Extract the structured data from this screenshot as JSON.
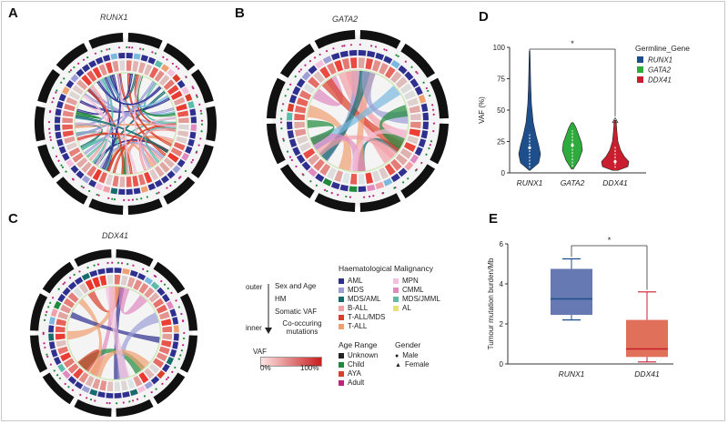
{
  "panels": {
    "A": {
      "label": "A",
      "title": "RUNX1"
    },
    "B": {
      "label": "B",
      "title": "GATA2"
    },
    "C": {
      "label": "C",
      "title": "DDX41"
    },
    "D": {
      "label": "D"
    },
    "E": {
      "label": "E"
    }
  },
  "ring_legend": {
    "outer": "outer",
    "inner": "inner",
    "items": [
      "Sex and Age",
      "HM",
      "Somatic VAF",
      "Co-occuring mutations"
    ],
    "vaf_title": "VAF",
    "vaf_min": "0%",
    "vaf_max": "100%"
  },
  "malignancy_legend": {
    "title": "Haematological Malignancy",
    "items": [
      {
        "label": "AML",
        "color": "#2e2f8f"
      },
      {
        "label": "MDS",
        "color": "#9d9ed6"
      },
      {
        "label": "MDS/AML",
        "color": "#166b6b"
      },
      {
        "label": "B-ALL",
        "color": "#f2a0a8"
      },
      {
        "label": "T-ALL/MDS",
        "color": "#d8402b"
      },
      {
        "label": "T-ALL",
        "color": "#f0a070"
      },
      {
        "label": "MPN",
        "color": "#f4c0dc"
      },
      {
        "label": "CMML",
        "color": "#e08ac0"
      },
      {
        "label": "MDS/JMML",
        "color": "#5cbcaa"
      },
      {
        "label": "AL",
        "color": "#e8e07a"
      }
    ]
  },
  "age_legend": {
    "title": "Age Range",
    "items": [
      {
        "label": "Unknown",
        "color": "#222222"
      },
      {
        "label": "Child",
        "color": "#1f8a3c"
      },
      {
        "label": "AYA",
        "color": "#d8402b"
      },
      {
        "label": "Adult",
        "color": "#c0237e"
      }
    ]
  },
  "gender_legend": {
    "title": "Gender",
    "items": [
      {
        "label": "Male",
        "symbol": "●"
      },
      {
        "label": "Female",
        "symbol": "▲"
      }
    ]
  },
  "chart_data": [
    {
      "panel": "D",
      "type": "violin",
      "categories": [
        "RUNX1",
        "GATA2",
        "DDX41"
      ],
      "colors": [
        "#1f4e8c",
        "#2faa3c",
        "#c81e2e"
      ],
      "xlabel": "",
      "ylabel": "VAF (%)",
      "ylim": [
        0,
        100
      ],
      "yticks": [
        0,
        25,
        50,
        75,
        100
      ],
      "medians": [
        20,
        22,
        9
      ],
      "ranges": [
        [
          2,
          97
        ],
        [
          3,
          40
        ],
        [
          2,
          42
        ]
      ],
      "legend": {
        "title": "Germline_Gene",
        "entries": [
          "RUNX1",
          "GATA2",
          "DDX41"
        ]
      },
      "annotation": "*"
    },
    {
      "panel": "E",
      "type": "box",
      "categories": [
        "RUNX1",
        "DDX41"
      ],
      "colors": [
        "#6679b2",
        "#e0705a"
      ],
      "ylabel": "Tumour mutation burden/Mb",
      "ylim": [
        0,
        6
      ],
      "yticks": [
        0,
        2,
        4,
        6
      ],
      "boxes": [
        {
          "whisker_low": 2.2,
          "q1": 2.45,
          "median": 3.25,
          "q3": 4.75,
          "whisker_high": 5.25
        },
        {
          "whisker_low": 0.1,
          "q1": 0.35,
          "median": 0.75,
          "q3": 2.2,
          "whisker_high": 3.6
        }
      ],
      "annotation": "*"
    }
  ]
}
